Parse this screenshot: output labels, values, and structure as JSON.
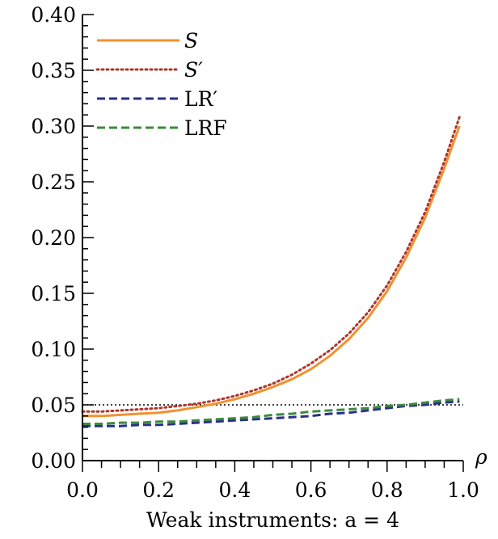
{
  "chart_data": {
    "type": "line",
    "xlabel": "Weak instruments: a = 4",
    "axis_symbol": "ρ",
    "xlim": [
      0,
      1
    ],
    "ylim": [
      0,
      0.4
    ],
    "x_ticks": [
      "0.0",
      "0.2",
      "0.4",
      "0.6",
      "0.8",
      "1.0"
    ],
    "y_ticks": [
      "0.00",
      "0.05",
      "0.10",
      "0.15",
      "0.20",
      "0.25",
      "0.30",
      "0.35",
      "0.40"
    ],
    "reference_line": {
      "y": 0.05,
      "style": "dotted",
      "color": "#000000"
    },
    "legend_position": "top-left",
    "x": [
      0.0,
      0.05,
      0.1,
      0.15,
      0.2,
      0.25,
      0.3,
      0.35,
      0.4,
      0.45,
      0.5,
      0.55,
      0.6,
      0.65,
      0.7,
      0.75,
      0.8,
      0.85,
      0.9,
      0.95,
      0.99
    ],
    "series": [
      {
        "name": "S",
        "style": "solid",
        "color": "#f0922e",
        "values": [
          0.04,
          0.04,
          0.041,
          0.042,
          0.043,
          0.045,
          0.048,
          0.051,
          0.055,
          0.06,
          0.066,
          0.073,
          0.082,
          0.094,
          0.109,
          0.128,
          0.152,
          0.182,
          0.218,
          0.262,
          0.3
        ]
      },
      {
        "name": "S′",
        "style": "dotted",
        "color": "#b0342a",
        "values": [
          0.044,
          0.044,
          0.045,
          0.046,
          0.047,
          0.049,
          0.051,
          0.054,
          0.058,
          0.063,
          0.069,
          0.077,
          0.087,
          0.099,
          0.114,
          0.133,
          0.157,
          0.187,
          0.223,
          0.268,
          0.308
        ]
      },
      {
        "name": "LR′",
        "style": "dashed",
        "color": "#2a2f8c",
        "values": [
          0.031,
          0.031,
          0.031,
          0.032,
          0.032,
          0.033,
          0.034,
          0.035,
          0.036,
          0.037,
          0.038,
          0.039,
          0.04,
          0.042,
          0.043,
          0.045,
          0.047,
          0.049,
          0.05,
          0.052,
          0.053
        ]
      },
      {
        "name": "LRF",
        "style": "dashed",
        "color": "#3c8a3c",
        "values": [
          0.033,
          0.033,
          0.034,
          0.034,
          0.035,
          0.035,
          0.036,
          0.037,
          0.038,
          0.039,
          0.041,
          0.042,
          0.044,
          0.045,
          0.046,
          0.047,
          0.049,
          0.05,
          0.052,
          0.054,
          0.055
        ]
      }
    ]
  }
}
